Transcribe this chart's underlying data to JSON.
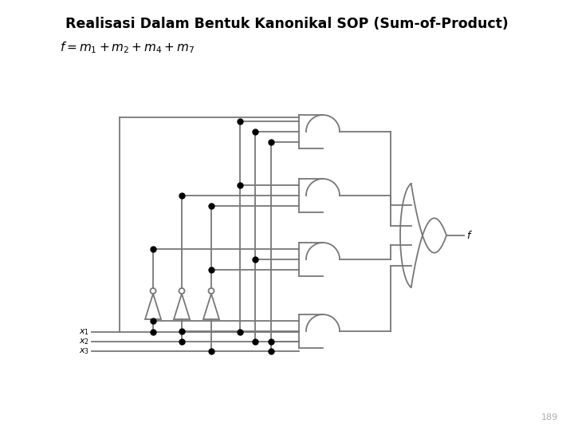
{
  "title": "Realisasi Dalam Bentuk Kanonikal SOP (Sum-of-Product)",
  "page_number": "189",
  "bg_color": "#ffffff",
  "line_color": "#777777",
  "dark_color": "#000000",
  "title_fontsize": 12.5,
  "formula_fontsize": 11,
  "lw": 1.3
}
